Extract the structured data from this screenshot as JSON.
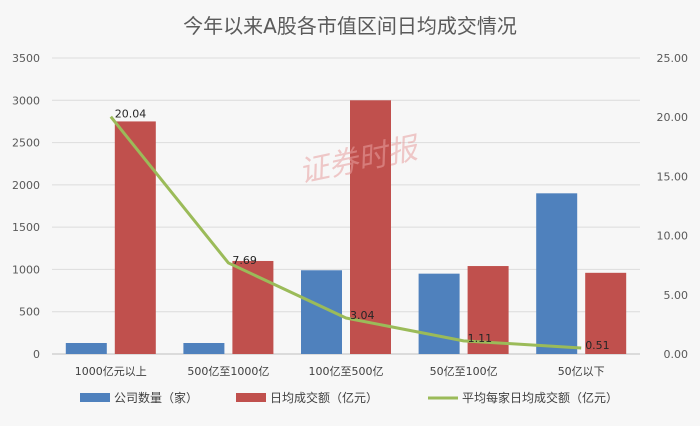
{
  "chart_data": {
    "type": "bar",
    "title": "今年以来A股各市值区间日均成交情况",
    "categories": [
      "1000亿元以上",
      "500亿至1000亿",
      "100亿至500亿",
      "50亿至100亿",
      "50亿以下"
    ],
    "series": [
      {
        "name": "公司数量（家）",
        "type": "bar",
        "axis": "left",
        "color": "#4f81bd",
        "values": [
          130,
          130,
          990,
          950,
          1900
        ]
      },
      {
        "name": "日均成交额（亿元）",
        "type": "bar",
        "axis": "left",
        "color": "#c0504d",
        "values": [
          2750,
          1100,
          3000,
          1040,
          960
        ]
      },
      {
        "name": "平均每家日均成交额（亿元）",
        "type": "line",
        "axis": "right",
        "color": "#9bbb59",
        "values": [
          20.04,
          7.69,
          3.04,
          1.11,
          0.51
        ],
        "labels": [
          "20.04",
          "7.69",
          "3.04",
          "1.11",
          "0.51"
        ]
      }
    ],
    "y_left": {
      "min": 0,
      "max": 3500,
      "ticks": [
        "0",
        "500",
        "1000",
        "1500",
        "2000",
        "2500",
        "3000",
        "3500"
      ]
    },
    "y_right": {
      "min": 0,
      "max": 25,
      "ticks": [
        "0.00",
        "5.00",
        "10.00",
        "15.00",
        "20.00",
        "25.00"
      ]
    },
    "grid": true,
    "legend_position": "bottom",
    "watermark": "证券时报"
  }
}
